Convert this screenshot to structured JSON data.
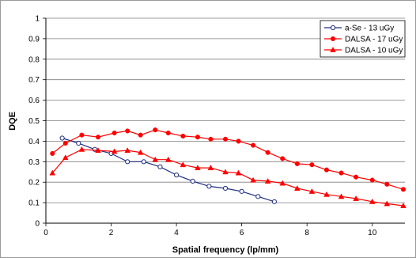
{
  "chart_data": {
    "type": "line",
    "title": "",
    "xlabel": "Spatial frequency (lp/mm)",
    "ylabel": "DQE",
    "xlim": [
      0,
      11
    ],
    "ylim": [
      0,
      1
    ],
    "x_ticks": [
      "0",
      "2",
      "4",
      "6",
      "8",
      "10"
    ],
    "y_ticks": [
      "0",
      "0.1",
      "0.2",
      "0.3",
      "0.4",
      "0.5",
      "0.6",
      "0.7",
      "0.8",
      "0.9",
      "1"
    ],
    "grid": "horizontal",
    "legend_position": "top-right",
    "series": [
      {
        "name": "a-Se - 13 uGy",
        "color": "#1f2d80",
        "marker": "open-circle",
        "x": [
          0.5,
          1.0,
          1.5,
          2.0,
          2.5,
          3.0,
          3.5,
          4.0,
          4.5,
          5.0,
          5.5,
          6.0,
          6.5,
          7.0
        ],
        "y": [
          0.415,
          0.39,
          0.36,
          0.34,
          0.3,
          0.3,
          0.275,
          0.235,
          0.205,
          0.18,
          0.17,
          0.155,
          0.13,
          0.105
        ]
      },
      {
        "name": "DALSA - 17 uGy",
        "color": "#ff0000",
        "marker": "filled-circle",
        "x": [
          0.2,
          0.6,
          1.1,
          1.6,
          2.1,
          2.5,
          2.9,
          3.35,
          3.75,
          4.2,
          4.65,
          5.05,
          5.5,
          5.9,
          6.35,
          6.8,
          7.25,
          7.7,
          8.15,
          8.6,
          9.05,
          9.5,
          10.0,
          10.45,
          10.95
        ],
        "y": [
          0.34,
          0.39,
          0.43,
          0.42,
          0.44,
          0.45,
          0.43,
          0.455,
          0.44,
          0.425,
          0.42,
          0.41,
          0.41,
          0.4,
          0.38,
          0.345,
          0.315,
          0.29,
          0.285,
          0.26,
          0.245,
          0.225,
          0.21,
          0.19,
          0.165
        ]
      },
      {
        "name": "DALSA - 10 uGy",
        "color": "#ff0000",
        "marker": "filled-triangle",
        "x": [
          0.2,
          0.6,
          1.1,
          1.6,
          2.1,
          2.5,
          2.9,
          3.35,
          3.75,
          4.2,
          4.65,
          5.05,
          5.5,
          5.9,
          6.35,
          6.8,
          7.25,
          7.7,
          8.15,
          8.6,
          9.05,
          9.5,
          10.0,
          10.45,
          10.95
        ],
        "y": [
          0.245,
          0.32,
          0.36,
          0.355,
          0.35,
          0.355,
          0.345,
          0.31,
          0.31,
          0.285,
          0.27,
          0.27,
          0.25,
          0.245,
          0.21,
          0.205,
          0.195,
          0.17,
          0.155,
          0.14,
          0.13,
          0.12,
          0.105,
          0.095,
          0.085
        ]
      }
    ]
  }
}
